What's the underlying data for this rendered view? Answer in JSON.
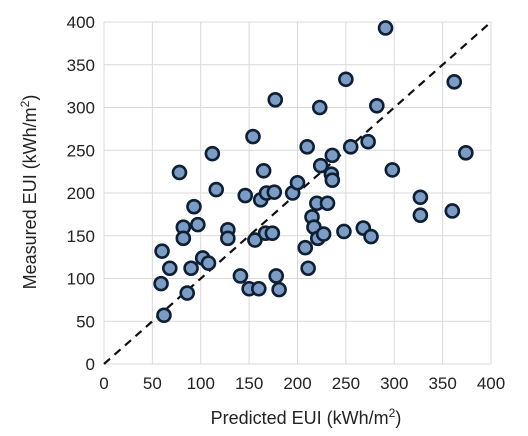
{
  "chart_data": {
    "type": "scatter",
    "xlabel": "Predicted EUI (kWh/m²)",
    "ylabel": "Measured EUI (kWh/m²)",
    "xlabel_parts": [
      "Predicted EUI (kWh/m",
      "2",
      ")"
    ],
    "ylabel_parts": [
      "Measured EUI (kWh/m",
      "2",
      ")"
    ],
    "xlim": [
      0,
      400
    ],
    "ylim": [
      0,
      400
    ],
    "xticks": [
      0,
      50,
      100,
      150,
      200,
      250,
      300,
      350,
      400
    ],
    "yticks": [
      0,
      50,
      100,
      150,
      200,
      250,
      300,
      350,
      400
    ],
    "grid": true,
    "reference_line": "y = x (dashed)",
    "colors": {
      "marker_fill": "#7b9cc4",
      "marker_stroke": "#0f1f33",
      "grid": "#d9d9d9",
      "line": "#111111"
    },
    "points": [
      [
        59,
        94
      ],
      [
        60,
        132
      ],
      [
        62,
        57
      ],
      [
        68,
        112
      ],
      [
        78,
        224
      ],
      [
        82,
        160
      ],
      [
        82,
        147
      ],
      [
        86,
        83
      ],
      [
        90,
        112
      ],
      [
        93,
        184
      ],
      [
        97,
        163
      ],
      [
        102,
        124
      ],
      [
        108,
        118
      ],
      [
        112,
        246
      ],
      [
        116,
        204
      ],
      [
        128,
        157
      ],
      [
        128,
        147
      ],
      [
        141,
        103
      ],
      [
        146,
        197
      ],
      [
        150,
        88
      ],
      [
        154,
        266
      ],
      [
        156,
        145
      ],
      [
        160,
        88
      ],
      [
        162,
        192
      ],
      [
        165,
        226
      ],
      [
        167,
        153
      ],
      [
        168,
        200
      ],
      [
        174,
        153
      ],
      [
        176,
        201
      ],
      [
        177,
        309
      ],
      [
        178,
        103
      ],
      [
        181,
        87
      ],
      [
        195,
        200
      ],
      [
        200,
        212
      ],
      [
        208,
        136
      ],
      [
        210,
        254
      ],
      [
        211,
        112
      ],
      [
        215,
        172
      ],
      [
        217,
        160
      ],
      [
        220,
        188
      ],
      [
        221,
        147
      ],
      [
        223,
        300
      ],
      [
        224,
        232
      ],
      [
        227,
        152
      ],
      [
        231,
        188
      ],
      [
        235,
        222
      ],
      [
        236,
        215
      ],
      [
        236,
        244
      ],
      [
        248,
        155
      ],
      [
        250,
        333
      ],
      [
        255,
        254
      ],
      [
        268,
        159
      ],
      [
        273,
        260
      ],
      [
        276,
        149
      ],
      [
        282,
        302
      ],
      [
        291,
        393
      ],
      [
        298,
        227
      ],
      [
        327,
        195
      ],
      [
        327,
        174
      ],
      [
        360,
        179
      ],
      [
        362,
        330
      ],
      [
        374,
        247
      ]
    ]
  }
}
